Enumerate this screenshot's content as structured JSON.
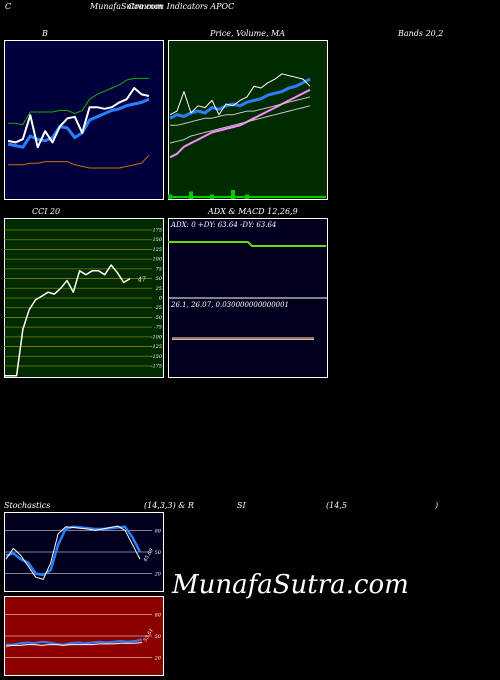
{
  "header": {
    "left": "C",
    "site": "MunafaSutra.com",
    "title": "Common Indicators APOC"
  },
  "labels": {
    "b": "B",
    "price_ma": "Price,  Volume, MA",
    "bands": "Bands 20,2",
    "cci": "CCI 20",
    "adx_macd": "ADX  & MACD 12,26,9",
    "stoch": "Stochastics",
    "stoch_params": "(14,3,3) & R",
    "si": "SI",
    "rsi_params": "(14,5",
    "rsi_close": ")"
  },
  "watermark": "MunafaSutra.com",
  "chart_data": [
    {
      "id": "bollinger",
      "type": "line",
      "title": "B",
      "series": [
        {
          "values": [
            75,
            74,
            73,
            80,
            78,
            77,
            79,
            86,
            85,
            79,
            82,
            90,
            92,
            94,
            96,
            97,
            99,
            100,
            101,
            103
          ],
          "color": "#2a7fff"
        },
        {
          "values": [
            62,
            62,
            62,
            63,
            63,
            64,
            64,
            64,
            64,
            62,
            61,
            60,
            60,
            60,
            60,
            60,
            61,
            62,
            63,
            68
          ],
          "color": "#c57000"
        },
        {
          "values": [
            88,
            88,
            87,
            95,
            95,
            95,
            95,
            96,
            96,
            94,
            96,
            103,
            106,
            108,
            110,
            112,
            115,
            116,
            116,
            116
          ],
          "color": "#17b000"
        },
        {
          "values": [
            77,
            76,
            78,
            93,
            73,
            83,
            76,
            86,
            91,
            92,
            82,
            98,
            98,
            97,
            98,
            101,
            103,
            110,
            106,
            105
          ],
          "color": "#ffffff"
        }
      ]
    },
    {
      "id": "price_volume",
      "type": "line",
      "title": "Price,  Volume, MA",
      "series": [
        {
          "values": [
            64,
            66,
            70,
            72,
            74,
            76,
            78,
            79,
            80,
            81,
            82,
            84,
            86,
            88,
            90,
            92,
            94,
            96,
            98,
            100,
            102
          ],
          "color": "#ff8cff"
        },
        {
          "values": [
            72,
            73,
            74,
            76,
            77,
            78,
            79,
            80,
            81,
            82,
            83,
            84,
            85,
            86,
            87,
            88,
            89,
            90,
            91,
            92,
            93
          ],
          "color": "#c8c8c8"
        },
        {
          "values": [
            82,
            82,
            83,
            84,
            85,
            86,
            86,
            87,
            88,
            88,
            89,
            90,
            90,
            91,
            92,
            93,
            94,
            95,
            96,
            97,
            98
          ],
          "color": "#c8c8c8"
        },
        {
          "values": [
            86,
            88,
            87,
            89,
            90,
            89,
            92,
            91,
            93,
            94,
            93,
            95,
            96,
            97,
            99,
            100,
            101,
            103,
            104,
            106,
            108
          ],
          "color": "#2a7fff"
        },
        {
          "values": [
            88,
            90,
            101,
            89,
            93,
            92,
            96,
            88,
            94,
            93,
            96,
            98,
            104,
            103,
            106,
            108,
            111,
            110,
            109,
            108,
            104
          ],
          "color": "#ffffff"
        }
      ],
      "volume": [
        1,
        0,
        0,
        3,
        0,
        0,
        1,
        0,
        0,
        4,
        0,
        1,
        0,
        0,
        0,
        0,
        0,
        0,
        0,
        0,
        0
      ]
    },
    {
      "id": "cci",
      "type": "line",
      "title": "CCI 20",
      "y_ticks": [
        175,
        150,
        125,
        100,
        75,
        50,
        25,
        0,
        -25,
        -50,
        -75,
        -100,
        -125,
        -150,
        -175
      ],
      "values": [
        -200,
        -200,
        -200,
        -80,
        -30,
        -5,
        5,
        15,
        10,
        25,
        45,
        15,
        70,
        60,
        70,
        70,
        60,
        85,
        65,
        40,
        50
      ],
      "last_label": "47"
    },
    {
      "id": "adx_macd",
      "type": "line",
      "title": "ADX  & MACD 12,26,9",
      "adx_label": "ADX: 0  +DY: 63.64  -DY: 63.64",
      "macd_label": "26.1,  26.07,  0.030000000000001"
    },
    {
      "id": "stochastics",
      "type": "line",
      "title": "Stochastics",
      "y_ticks": [
        80,
        50,
        20
      ],
      "series": [
        {
          "values": [
            45,
            48,
            40,
            35,
            20,
            18,
            25,
            60,
            82,
            85,
            84,
            83,
            82,
            82,
            83,
            84,
            85,
            70,
            50
          ],
          "color": "#2a7fff"
        },
        {
          "values": [
            40,
            55,
            45,
            30,
            15,
            12,
            35,
            75,
            85,
            84,
            83,
            82,
            80,
            82,
            84,
            86,
            80,
            60,
            40
          ],
          "color": "#ffffff"
        }
      ],
      "last_label": "45.69"
    },
    {
      "id": "rsi",
      "type": "line",
      "title": "SI",
      "y_ticks": [
        80,
        50,
        20
      ],
      "series": [
        {
          "values": [
            38,
            38,
            40,
            41,
            40,
            42,
            41,
            39,
            38,
            40,
            41,
            40,
            41,
            42,
            41,
            42,
            43,
            42,
            43,
            45
          ],
          "color": "#2a7fff"
        },
        {
          "values": [
            36,
            37,
            37,
            38,
            38,
            37,
            38,
            38,
            37,
            38,
            38,
            38,
            38,
            39,
            39,
            39,
            40,
            40,
            40,
            41
          ],
          "color": "#ffffff"
        }
      ],
      "last_label": "53.61"
    }
  ],
  "colors": {
    "bollinger_bg": "#00003c",
    "price_bg": "#002a00",
    "cci_bg": "#002a00",
    "adx_bg": "#00001e",
    "stoch_bg": "#00001e",
    "rsi_bg": "#8c0000"
  }
}
